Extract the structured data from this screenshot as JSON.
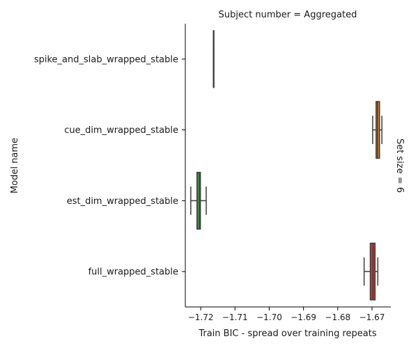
{
  "chart_data": {
    "type": "box",
    "orientation": "horizontal",
    "facet_title": "Subject number = Aggregated",
    "row_label": "Set size = 6",
    "xlabel": "Train BIC - spread over training repeats",
    "ylabel": "Model name",
    "xlim": [
      -1.7245,
      -1.6645
    ],
    "xticks": [
      -1.72,
      -1.71,
      -1.7,
      -1.69,
      -1.68,
      -1.67
    ],
    "xtick_labels": [
      "−1.72",
      "−1.71",
      "−1.70",
      "−1.69",
      "−1.68",
      "−1.67"
    ],
    "grid": false,
    "categories": [
      "spike_and_slab_wrapped_stable",
      "cue_dim_wrapped_stable",
      "est_dim_wrapped_stable",
      "full_wrapped_stable"
    ],
    "boxes": [
      {
        "name": "spike_and_slab_wrapped_stable",
        "whisker_low": -1.7163,
        "q1": -1.7163,
        "median": -1.7163,
        "q3": -1.7163,
        "whisker_high": -1.7163,
        "color": "#1f77b4"
      },
      {
        "name": "cue_dim_wrapped_stable",
        "whisker_low": -1.6698,
        "q1": -1.6688,
        "median": -1.6684,
        "q3": -1.6678,
        "whisker_high": -1.6671,
        "color": "#cc7f3a"
      },
      {
        "name": "est_dim_wrapped_stable",
        "whisker_low": -1.7229,
        "q1": -1.7211,
        "median": -1.7203,
        "q3": -1.7201,
        "whisker_high": -1.7184,
        "color": "#3f8a3f"
      },
      {
        "name": "full_wrapped_stable",
        "whisker_low": -1.6723,
        "q1": -1.6705,
        "median": -1.6697,
        "q3": -1.6691,
        "whisker_high": -1.6683,
        "color": "#c43a3a"
      }
    ]
  }
}
